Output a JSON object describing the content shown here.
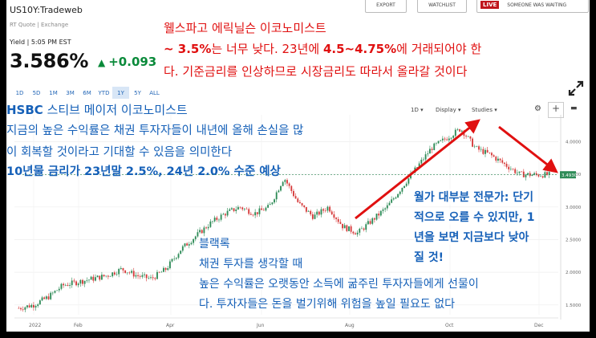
{
  "quote": {
    "ticker": "US10Y:Tradeweb",
    "subline": "RT Quote | Exchange",
    "yield_line": "Yield | 5:05 PM EST",
    "price": "3.586%",
    "change": "+0.093",
    "up_color": "#0a8a3a"
  },
  "buttons": {
    "export": "EXPORT",
    "watchlist": "WATCHLIST",
    "live_badge": "LIVE",
    "live_text": "SOMEONE WAS WAITING"
  },
  "ranges": {
    "items": [
      "1D",
      "5D",
      "1M",
      "3M",
      "6M",
      "YTD",
      "1Y",
      "5Y",
      "ALL"
    ],
    "active": "1Y"
  },
  "tools": {
    "interval": "1D",
    "display": "Display",
    "studies": "Studies",
    "gear_icon": "gear-icon",
    "crosshair_icon": "crosshair-icon",
    "comment_icon": "comment-icon",
    "expand_icon": "expand-icon"
  },
  "annotations": {
    "wells_line1": "웰스파고 에릭닐슨 이코노미스트",
    "wells_line2_a": "~ 3.5%",
    "wells_line2_b": "는 너무 낮다. 23년에 ",
    "wells_line2_c": "4.5~4.75%",
    "wells_line2_d": "에 거래되어야 한",
    "wells_line3": "다. 기준금리를 인상하므로 시장금리도 따라서 올라갈 것이다",
    "hsbc_name": "HSBC",
    "hsbc_line1": " 스티브 메이저 이코노미스트",
    "hsbc_line2": "지금의 높은 수익률은 채권 투자자들이 내년에 올해 손실을 많",
    "hsbc_line3": "이 회복할 것이라고 기대할 수 있음을 의미한다",
    "hsbc_line4": "10년물 금리가 23년말 2.5%, 24년 2.0% 수준 예상",
    "expert_line1": "월가 대부분 전문가: 단기",
    "expert_line2": "적으로 오를 수 있지만, 1",
    "expert_line3": "년을 보면 지금보다 낮아",
    "expert_line4": "질 것!",
    "blackrock_line1": "블랙록",
    "blackrock_line2": "채권 투자를 생각할 때",
    "blackrock_line3": "높은 수익률은 오랫동안 소득에 굶주린 투자자들에게 선물이",
    "blackrock_line4": "다. 투자자들은 돈을 벌기위해 위험을 높일 필요도 없다",
    "red": "#e01010",
    "blue": "#1560b8"
  },
  "chart_data": {
    "type": "candlestick",
    "y_ticks": [
      "1.5000",
      "2.0000",
      "2.5000",
      "3.0000",
      "3.5000",
      "4.0000"
    ],
    "ylim": [
      1.35,
      4.35
    ],
    "x_labels": [
      "2022",
      "Feb",
      "Apr",
      "Jun",
      "Aug",
      "Oct",
      "Dec"
    ],
    "last_value_label": "3.4930",
    "last_value": 3.493,
    "trend_path": [
      [
        1.45,
        1.55
      ],
      [
        1.5,
        1.6
      ],
      [
        1.62,
        1.75
      ],
      [
        1.8,
        1.9
      ],
      [
        1.85,
        2.0
      ],
      [
        1.9,
        2.05
      ],
      [
        1.95,
        2.1
      ],
      [
        2.05,
        2.15
      ],
      [
        1.95,
        1.9
      ],
      [
        1.9,
        1.92
      ],
      [
        2.05,
        2.3
      ],
      [
        2.35,
        2.5
      ],
      [
        2.55,
        2.75
      ],
      [
        2.75,
        2.85
      ],
      [
        2.9,
        2.95
      ],
      [
        3.0,
        3.1
      ],
      [
        2.9,
        2.95
      ],
      [
        3.0,
        3.2
      ],
      [
        3.45,
        3.25
      ],
      [
        3.05,
        2.9
      ],
      [
        2.85,
        2.95
      ],
      [
        3.0,
        2.8
      ],
      [
        2.7,
        2.6
      ],
      [
        2.6,
        2.75
      ],
      [
        2.8,
        2.95
      ],
      [
        3.0,
        3.2
      ],
      [
        3.3,
        3.5
      ],
      [
        3.6,
        3.8
      ],
      [
        3.9,
        4.0
      ],
      [
        4.05,
        4.15
      ],
      [
        4.2,
        4.05
      ],
      [
        3.9,
        4.0
      ],
      [
        3.8,
        3.7
      ],
      [
        3.65,
        3.55
      ],
      [
        3.5,
        3.48
      ],
      [
        3.493,
        3.493
      ]
    ],
    "up_color": "#2e8b57",
    "down_color": "#d63a3a"
  }
}
